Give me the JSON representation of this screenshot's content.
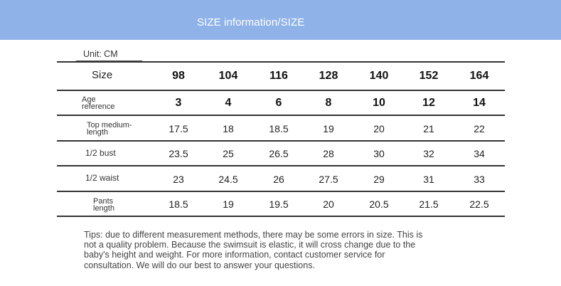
{
  "banner": {
    "title": "SIZE information/SIZE"
  },
  "unit": "Unit: CM",
  "table": {
    "header": {
      "label": "Size",
      "values": [
        "98",
        "104",
        "116",
        "128",
        "140",
        "152",
        "164"
      ]
    },
    "rows": [
      {
        "label_line1": "Age",
        "label_line2": "reference",
        "values": [
          "3",
          "4",
          "6",
          "8",
          "10",
          "12",
          "14"
        ]
      },
      {
        "label_line1": "Top medium-",
        "label_line2": "length",
        "values": [
          "17.5",
          "18",
          "18.5",
          "19",
          "20",
          "21",
          "22"
        ]
      },
      {
        "label_line1": "1/2 bust",
        "label_line2": "",
        "values": [
          "23.5",
          "25",
          "26.5",
          "28",
          "30",
          "32",
          "34"
        ]
      },
      {
        "label_line1": "1/2 waist",
        "label_line2": "",
        "values": [
          "23",
          "24.5",
          "26",
          "27.5",
          "29",
          "31",
          "33"
        ]
      },
      {
        "label_line1": "Pants",
        "label_line2": "length",
        "values": [
          "18.5",
          "19",
          "19.5",
          "20",
          "20.5",
          "21.5",
          "22.5"
        ]
      }
    ]
  },
  "tips": {
    "line1": "Tips: due to different measurement methods, there may be some errors in size. This is",
    "line2": "not a quality problem. Because the swimsuit is elastic, it will cross change due to the",
    "line3": "baby's height and weight. For more information, contact customer service for",
    "line4": "consultation. We will do our best to answer your questions."
  }
}
